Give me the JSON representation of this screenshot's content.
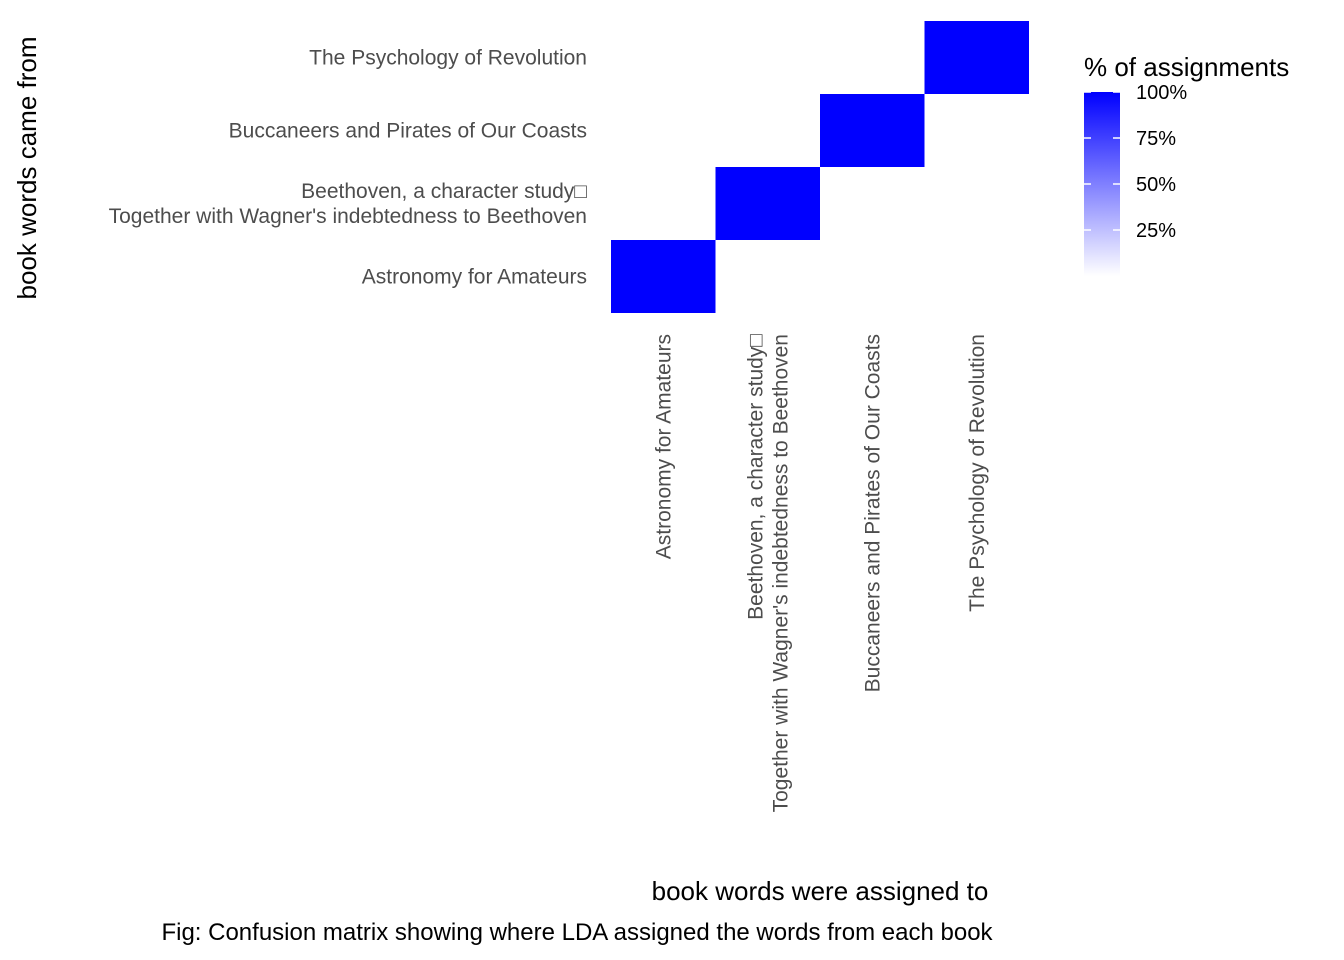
{
  "chart_data": {
    "type": "heatmap",
    "x_categories": [
      "Astronomy for Amateurs",
      "Beethoven, a character study□\nTogether with Wagner's indebtedness to Beethoven",
      "Buccaneers and Pirates of Our Coasts",
      "The Psychology of Revolution"
    ],
    "y_categories": [
      "Astronomy for Amateurs",
      "Beethoven, a character study□\nTogether with Wagner's indebtedness to Beethoven",
      "Buccaneers and Pirates of Our Coasts",
      "The Psychology of Revolution"
    ],
    "cells": [
      {
        "x": "Astronomy for Amateurs",
        "y": "Astronomy for Amateurs",
        "value": 1.0
      },
      {
        "x": "Beethoven, a character study□\nTogether with Wagner's indebtedness to Beethoven",
        "y": "Beethoven, a character study□\nTogether with Wagner's indebtedness to Beethoven",
        "value": 1.0
      },
      {
        "x": "Buccaneers and Pirates of Our Coasts",
        "y": "Buccaneers and Pirates of Our Coasts",
        "value": 1.0
      },
      {
        "x": "The Psychology of Revolution",
        "y": "The Psychology of Revolution",
        "value": 1.0
      }
    ],
    "xlabel": "book words were assigned to",
    "ylabel": "book words came from",
    "caption": "Fig: Confusion matrix showing where LDA assigned the words from each book",
    "legend": {
      "title": "% of assignments",
      "labels": [
        "100%",
        "75%",
        "50%",
        "25%"
      ],
      "breaks": [
        1.0,
        0.75,
        0.5,
        0.25
      ],
      "range": [
        0,
        1.0
      ],
      "position": "right",
      "low_color": "#ffffff",
      "high_color": "#0000ff"
    },
    "grid": false
  }
}
